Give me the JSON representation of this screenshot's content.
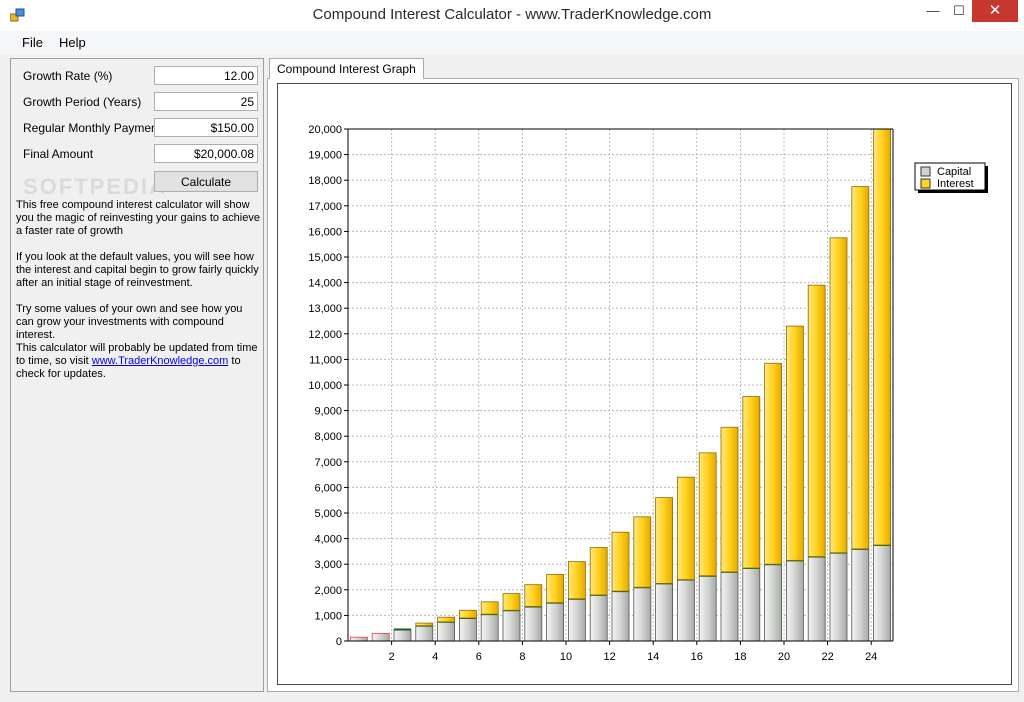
{
  "window": {
    "title": "Compound Interest Calculator - www.TraderKnowledge.com",
    "min_glyph": "—",
    "max_glyph": "☐",
    "close_glyph": "✕"
  },
  "menu": {
    "file": "File",
    "help": "Help"
  },
  "form": {
    "growth_rate": {
      "label": "Growth Rate (%)",
      "value": "12.00"
    },
    "growth_period": {
      "label": "Growth Period (Years)",
      "value": "25"
    },
    "monthly_payment": {
      "label": "Regular Monthly Payment",
      "value": "$150.00"
    },
    "final_amount": {
      "label": "Final Amount",
      "value": "$20,000.08"
    },
    "calculate_label": "Calculate"
  },
  "description": {
    "p1": "This free compound interest calculator will show you the magic of reinvesting your gains to achieve a faster rate of growth",
    "p2": "If you look at the default values, you will see how the interest and capital begin to grow fairly quickly after an initial stage of reinvestment.",
    "p3": "Try some values of your own and see how you can grow your investments with compound interest.",
    "p4_before": "This calculator will probably be updated from time to time, so visit ",
    "p4_link": "www.TraderKnowledge.com",
    "p4_after": " to check for updates."
  },
  "watermark": "SOFTPEDIA",
  "tab": {
    "label": "Compound Interest Graph"
  },
  "colors": {
    "capital": "#d2d4d2",
    "interest": "#ffd21c",
    "capital_edge": "#1f5e1f",
    "early_edge": "#e04040",
    "close": "#c7372f"
  },
  "chart_data": {
    "type": "bar",
    "stacked": true,
    "title": "",
    "xlabel": "",
    "ylabel": "",
    "ylim": [
      0,
      20000
    ],
    "y_ticks": [
      "0",
      "1,000",
      "2,000",
      "3,000",
      "4,000",
      "5,000",
      "6,000",
      "7,000",
      "8,000",
      "9,000",
      "10,000",
      "11,000",
      "12,000",
      "13,000",
      "14,000",
      "15,000",
      "16,000",
      "17,000",
      "18,000",
      "19,000",
      "20,000"
    ],
    "x_tick_labels": [
      "2",
      "4",
      "6",
      "8",
      "10",
      "12",
      "14",
      "16",
      "18",
      "20",
      "22",
      "24"
    ],
    "categories": [
      "1",
      "2",
      "3",
      "4",
      "5",
      "6",
      "7",
      "8",
      "9",
      "10",
      "11",
      "12",
      "13",
      "14",
      "15",
      "16",
      "17",
      "18",
      "19",
      "20",
      "21",
      "22",
      "23",
      "24",
      "25"
    ],
    "series": [
      {
        "name": "Capital",
        "values": [
          150,
          300,
          450,
          600,
          750,
          900,
          1050,
          1200,
          1350,
          1500,
          1650,
          1800,
          1950,
          2100,
          2250,
          2400,
          2550,
          2700,
          2850,
          3000,
          3150,
          3300,
          3450,
          3600,
          3750
        ]
      },
      {
        "name": "Interest",
        "values": [
          0,
          0,
          0,
          100,
          180,
          300,
          480,
          650,
          850,
          1100,
          1450,
          1850,
          2300,
          2750,
          3350,
          4000,
          4800,
          5650,
          6700,
          7850,
          9150,
          10600,
          12300,
          14150,
          16250
        ]
      }
    ],
    "legend": {
      "position": "top-right",
      "entries": [
        "Capital",
        "Interest"
      ]
    }
  }
}
